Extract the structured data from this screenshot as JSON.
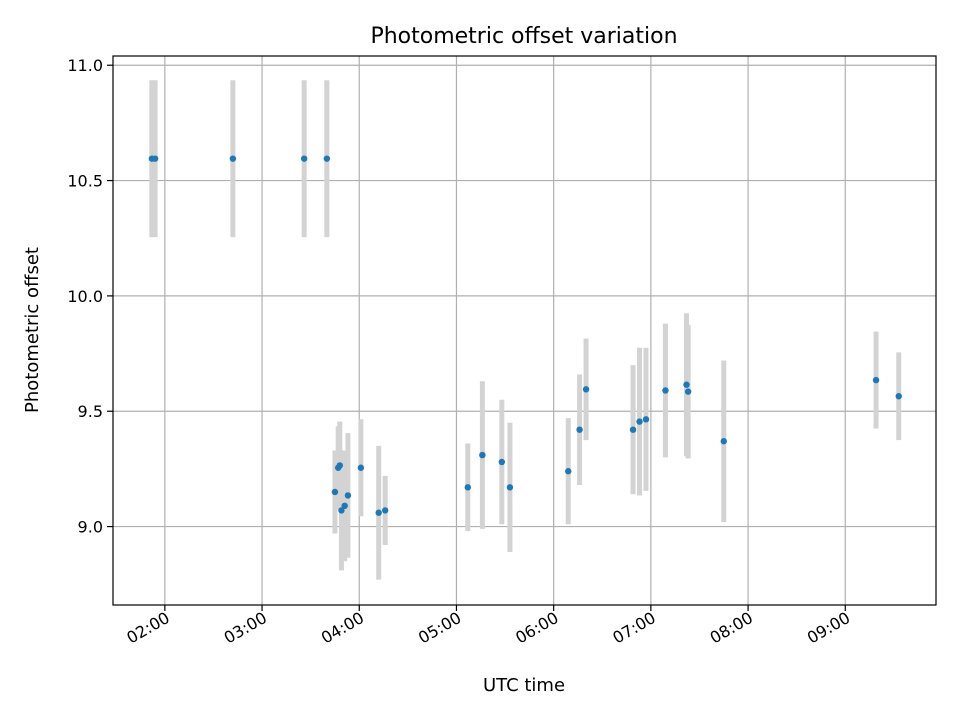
{
  "chart_data": {
    "type": "scatter",
    "title": "Photometric offset variation",
    "xlabel": "UTC time",
    "ylabel": "Photometric offset",
    "xlim": [
      "01:28",
      "09:56"
    ],
    "ylim": [
      8.66,
      11.04
    ],
    "x_ticks": [
      "02:00",
      "03:00",
      "04:00",
      "05:00",
      "06:00",
      "07:00",
      "08:00",
      "09:00"
    ],
    "y_ticks": [
      9.0,
      9.5,
      10.0,
      10.5,
      11.0
    ],
    "y_tick_labels": [
      "9.0",
      "9.5",
      "10.0",
      "10.5",
      "11.0"
    ],
    "grid": true,
    "marker_color": "#1f77b4",
    "errorbar_color": "#d3d3d3",
    "points": [
      {
        "x": "01:52",
        "y": 10.595,
        "err": 0.34
      },
      {
        "x": "01:54",
        "y": 10.595,
        "err": 0.34
      },
      {
        "x": "02:42",
        "y": 10.595,
        "err": 0.34
      },
      {
        "x": "03:26",
        "y": 10.595,
        "err": 0.34
      },
      {
        "x": "03:40",
        "y": 10.595,
        "err": 0.34
      },
      {
        "x": "03:45",
        "y": 9.15,
        "err": 0.18
      },
      {
        "x": "03:47",
        "y": 9.255,
        "err": 0.18
      },
      {
        "x": "03:48",
        "y": 9.265,
        "err": 0.19
      },
      {
        "x": "03:49",
        "y": 9.07,
        "err": 0.26
      },
      {
        "x": "03:51",
        "y": 9.09,
        "err": 0.24
      },
      {
        "x": "03:53",
        "y": 9.135,
        "err": 0.27
      },
      {
        "x": "04:01",
        "y": 9.255,
        "err": 0.21
      },
      {
        "x": "04:12",
        "y": 9.06,
        "err": 0.29
      },
      {
        "x": "04:16",
        "y": 9.07,
        "err": 0.15
      },
      {
        "x": "05:07",
        "y": 9.17,
        "err": 0.19
      },
      {
        "x": "05:16",
        "y": 9.31,
        "err": 0.32
      },
      {
        "x": "05:28",
        "y": 9.28,
        "err": 0.27
      },
      {
        "x": "05:33",
        "y": 9.17,
        "err": 0.28
      },
      {
        "x": "06:09",
        "y": 9.24,
        "err": 0.23
      },
      {
        "x": "06:16",
        "y": 9.42,
        "err": 0.24
      },
      {
        "x": "06:20",
        "y": 9.595,
        "err": 0.22
      },
      {
        "x": "06:49",
        "y": 9.42,
        "err": 0.28
      },
      {
        "x": "06:53",
        "y": 9.455,
        "err": 0.32
      },
      {
        "x": "06:57",
        "y": 9.465,
        "err": 0.31
      },
      {
        "x": "07:09",
        "y": 9.59,
        "err": 0.29
      },
      {
        "x": "07:22",
        "y": 9.615,
        "err": 0.31
      },
      {
        "x": "07:23",
        "y": 9.585,
        "err": 0.29
      },
      {
        "x": "07:45",
        "y": 9.37,
        "err": 0.35
      },
      {
        "x": "09:19",
        "y": 9.635,
        "err": 0.21
      },
      {
        "x": "09:33",
        "y": 9.565,
        "err": 0.19
      }
    ]
  }
}
